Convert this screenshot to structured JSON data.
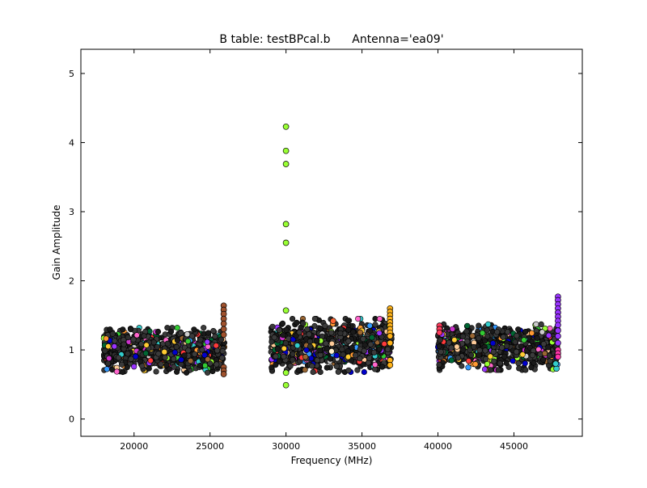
{
  "chart_data": {
    "type": "scatter",
    "title": "B table: testBPcal.b      Antenna='ea09'",
    "xlabel": "Frequency (MHz)",
    "ylabel": "Gain Amplitude",
    "xlim": [
      16500,
      49500
    ],
    "ylim": [
      -0.25,
      5.35
    ],
    "xticks": [
      20000,
      25000,
      30000,
      35000,
      40000,
      45000
    ],
    "yticks": [
      0,
      1,
      2,
      3,
      4,
      5
    ],
    "grid": false,
    "legend": "none",
    "marker_edge_color": "#000000",
    "palette": [
      "#2f2f2f",
      "#1a1a1a",
      "#3b3b3b",
      "#ff3b3b",
      "#ffcc33",
      "#33cc33",
      "#3399ff",
      "#cc33cc",
      "#ff9933",
      "#99ff33",
      "#33cccc",
      "#996633",
      "#ff66cc",
      "#9933ff",
      "#0000cc",
      "#006633",
      "#cccccc",
      "#ffcc99"
    ],
    "bands": [
      {
        "xmin": 18000,
        "xmax": 25950,
        "ymin": 0.67,
        "ymax": 1.32
      },
      {
        "xmin": 29000,
        "xmax": 36950,
        "ymin": 0.68,
        "ymax": 1.45
      },
      {
        "xmin": 40000,
        "xmax": 47900,
        "ymin": 0.71,
        "ymax": 1.37
      }
    ],
    "series": [
      {
        "color": "#99ff33",
        "x": [
          30000,
          30000,
          30000,
          30000,
          30000,
          30000,
          30000,
          30000
        ],
        "y": [
          4.23,
          3.88,
          3.69,
          2.82,
          2.55,
          1.57,
          0.67,
          0.49
        ]
      },
      {
        "color": "#a0522d",
        "x": [
          25900,
          25900,
          25900,
          25900,
          25900,
          25900,
          25900,
          25900,
          25900,
          25900
        ],
        "y": [
          1.64,
          1.58,
          1.52,
          1.45,
          1.38,
          1.3,
          1.22,
          0.75,
          0.7,
          0.65
        ]
      },
      {
        "color": "#ffb31a",
        "x": [
          36850,
          36850,
          36850,
          36850,
          36850,
          36850,
          36850,
          36850,
          36850,
          36850,
          36850,
          36850
        ],
        "y": [
          1.6,
          1.55,
          1.5,
          1.45,
          1.4,
          1.35,
          1.3,
          1.25,
          1.2,
          1.1,
          0.85,
          0.78
        ]
      },
      {
        "color": "#9933ff",
        "x": [
          47900,
          47900,
          47900,
          47900,
          47900,
          47900,
          47900,
          47900,
          47900,
          47900,
          47900
        ],
        "y": [
          1.77,
          1.72,
          1.66,
          1.6,
          1.54,
          1.48,
          1.42,
          1.36,
          1.28,
          1.2,
          1.1
        ]
      },
      {
        "color": "#ff33aa",
        "x": [
          47900,
          47900,
          47900
        ],
        "y": [
          1.0,
          0.95,
          0.9
        ]
      },
      {
        "color": "#33cccc",
        "x": [
          47800,
          47750
        ],
        "y": [
          0.73,
          0.8
        ]
      },
      {
        "color": "#ff3b5c",
        "x": [
          40100,
          40100,
          40100
        ],
        "y": [
          1.35,
          1.3,
          1.25
        ]
      },
      {
        "color": "#ffcc33",
        "x": [
          22000
        ],
        "y": [
          0.97
        ]
      },
      {
        "color": "#ffeecc",
        "x": [
          33000
        ],
        "y": [
          0.98
        ]
      },
      {
        "color": "#ff6633",
        "x": [
          33100
        ],
        "y": [
          1.42
        ]
      }
    ]
  }
}
